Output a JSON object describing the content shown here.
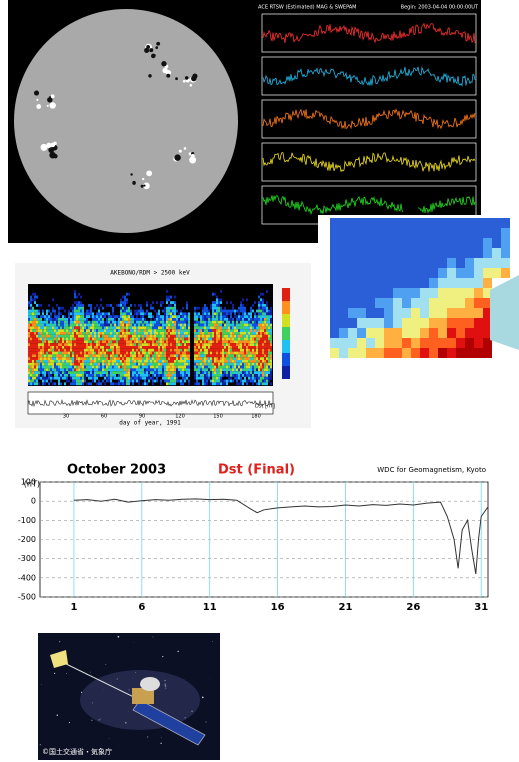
{
  "ace_panel": {
    "title": "ACE RTSW (Estimated) MAG & SWEPAM",
    "begin": "Begin: 2003-04-04 00:00:00UT"
  },
  "akebono_panel": {
    "title": "AKEBONO/RDM > 2500 keV",
    "xlabel": "day of year, 1991",
    "xticks": [
      30,
      60,
      90,
      120,
      150,
      180
    ],
    "dst_label": "Dst [nT]"
  },
  "satellite_image": {
    "credit": "©国土交通省・気象庁"
  },
  "chart_data": {
    "type": "line",
    "title": "October 2003",
    "subtitle": "Dst (Final)",
    "source": "WDC for Geomagnetism, Kyoto",
    "ylabel": "(nT)",
    "x": [
      1,
      2,
      3,
      4,
      5,
      6,
      7,
      8,
      9,
      10,
      11,
      12,
      13,
      14,
      14.5,
      15,
      16,
      17,
      18,
      19,
      20,
      21,
      22,
      23,
      24,
      25,
      26,
      27,
      28,
      28.5,
      29,
      29.3,
      29.6,
      30,
      30.3,
      30.6,
      30.8,
      31,
      31.5
    ],
    "values": [
      5,
      8,
      0,
      10,
      -5,
      2,
      8,
      5,
      10,
      12,
      8,
      10,
      5,
      -40,
      -60,
      -45,
      -35,
      -30,
      -25,
      -30,
      -28,
      -20,
      -25,
      -18,
      -22,
      -15,
      -20,
      -10,
      -5,
      -80,
      -200,
      -350,
      -150,
      -100,
      -250,
      -380,
      -200,
      -80,
      -30
    ],
    "color": "#333333",
    "xlim": [
      -1.5,
      31.5
    ],
    "ylim": [
      -500,
      100
    ],
    "xticks": [
      1,
      6,
      11,
      16,
      21,
      26,
      31
    ],
    "yticks": [
      100,
      0,
      -100,
      -200,
      -300,
      -400,
      -500
    ],
    "grid": true
  }
}
